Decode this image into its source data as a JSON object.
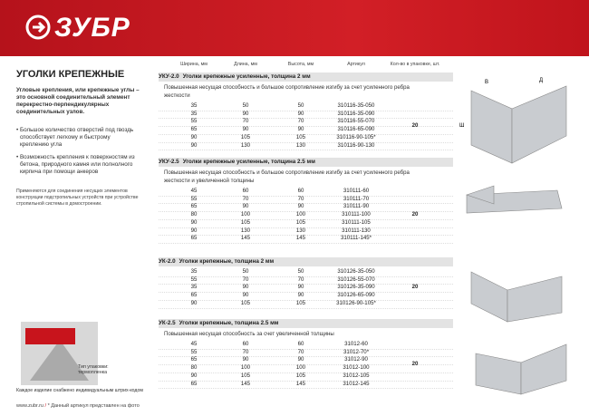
{
  "header": {
    "brand": "ЗУБР"
  },
  "left": {
    "title": "УГОЛКИ КРЕПЕЖНЫЕ",
    "intro": "Угловые крепления, или крепежные углы – это основной соединительный элемент перекрестно-перпендикулярных соединительных узлов.",
    "bullets": [
      "Большое количество отверстий под гвоздь способствует легкому и быстрому креплению угла",
      "Возможность крепления к поверхностям из бетона, природного камня или полнолного кирпича при помощи анкеров"
    ],
    "note": "Применяются для соединения несущих элементов конструкции подстропильных устройств при устройстве стропильной системы в домостроении.",
    "package_caption": "Тип упаковки: термопленка",
    "barcode_note": "Каждое изделие снабжено индивидуальным штрих-кодом"
  },
  "table": {
    "columns": [
      "Ширина, мм",
      "Длина, мм",
      "Высота, мм",
      "Артикул",
      "Кол-во в упаковке, шт."
    ],
    "sections": [
      {
        "code": "УКУ-2.0",
        "title": "Уголки крепежные усиленные, толщина 2 мм",
        "description": "Повышенная несущая способность и большое сопротивление изгибу за счет усиленного ребра жесткости",
        "quantity": 20,
        "rows": [
          [
            35,
            50,
            50,
            "310116-35-050"
          ],
          [
            35,
            90,
            90,
            "310116-35-090"
          ],
          [
            55,
            70,
            70,
            "310116-55-070"
          ],
          [
            65,
            90,
            90,
            "310116-65-090"
          ],
          [
            90,
            105,
            105,
            "310116-90-105*"
          ],
          [
            90,
            130,
            130,
            "310116-90-130"
          ]
        ]
      },
      {
        "code": "УКУ-2.5",
        "title": "Уголки крепежные усиленные, толщина 2.5 мм",
        "description": "Повышенная несущая способность и большое сопротивление изгибу за счет усиленного ребра жесткости и увеличенной толщины",
        "quantity": 20,
        "rows": [
          [
            45,
            60,
            60,
            "310111-60"
          ],
          [
            55,
            70,
            70,
            "310111-70"
          ],
          [
            65,
            90,
            90,
            "310111-90"
          ],
          [
            80,
            100,
            100,
            "310111-100"
          ],
          [
            90,
            105,
            105,
            "310111-105"
          ],
          [
            90,
            130,
            130,
            "310111-130"
          ],
          [
            65,
            145,
            145,
            "310111-145*"
          ]
        ]
      },
      {
        "code": "УК-2.0",
        "title": "Уголки крепежные, толщина 2 мм",
        "quantity": 20,
        "rows": [
          [
            35,
            50,
            50,
            "310126-35-050"
          ],
          [
            55,
            70,
            70,
            "310126-55-070"
          ],
          [
            35,
            90,
            90,
            "310126-35-090"
          ],
          [
            65,
            90,
            90,
            "310126-65-090"
          ],
          [
            90,
            105,
            105,
            "310126-90-105*"
          ]
        ]
      },
      {
        "code": "УК-2.5",
        "title": "Уголки крепежные, толщина 2.5 мм",
        "description": "Повышенная несущая способность за счет увеличенной толщины",
        "quantity": 20,
        "rows": [
          [
            45,
            60,
            60,
            "31012-60"
          ],
          [
            55,
            70,
            70,
            "31012-70*"
          ],
          [
            65,
            90,
            90,
            "31012-90"
          ],
          [
            80,
            100,
            100,
            "31012-100"
          ],
          [
            90,
            105,
            105,
            "31012-105"
          ],
          [
            65,
            145,
            145,
            "31012-145"
          ]
        ]
      }
    ]
  },
  "diagram_labels": [
    "В",
    "Д",
    "Ш"
  ],
  "footer": {
    "url": "www.zubr.ru",
    "separator": "/",
    "note": "* Данный артикул представлен на фото"
  }
}
